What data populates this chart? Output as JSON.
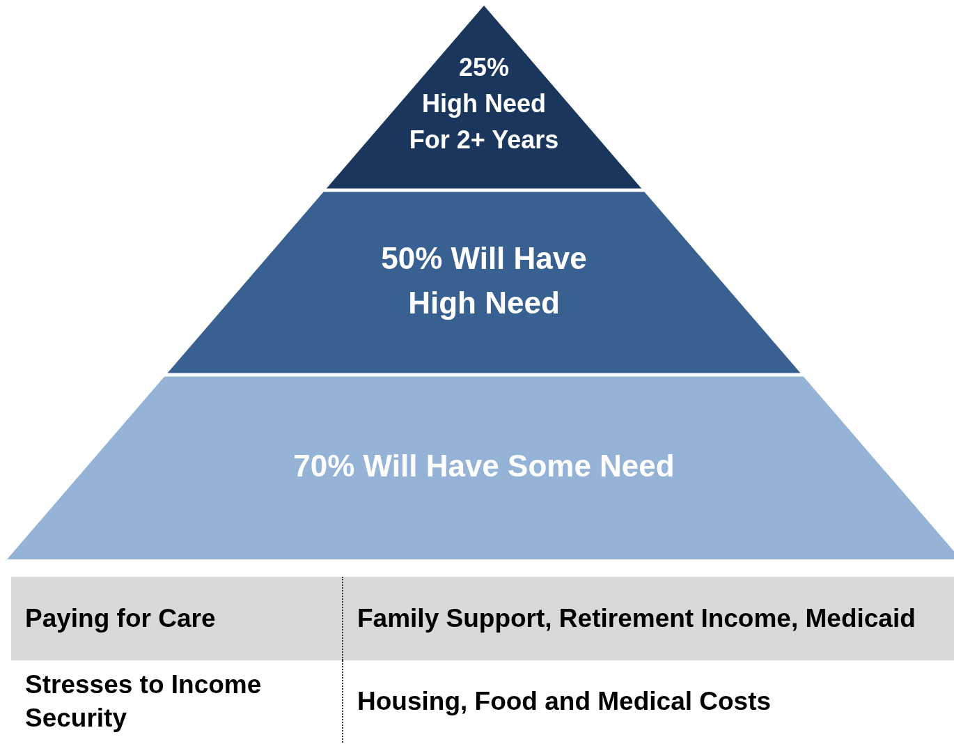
{
  "chart_data": {
    "type": "other",
    "categories": [
      "High Need For 2+ Years",
      "Will Have High Need",
      "Will Have Some Need"
    ],
    "values": [
      25,
      50,
      70
    ],
    "value_labels": [
      "25%",
      "50%",
      "70%"
    ],
    "colors": [
      "#1b365d",
      "#386091",
      "#95b3d7"
    ],
    "annotations": [
      "Paying for Care",
      "Family Support, Retirement Income, Medicaid",
      "Stresses to Income Security",
      "Housing, Food and Medical Costs"
    ]
  }
}
